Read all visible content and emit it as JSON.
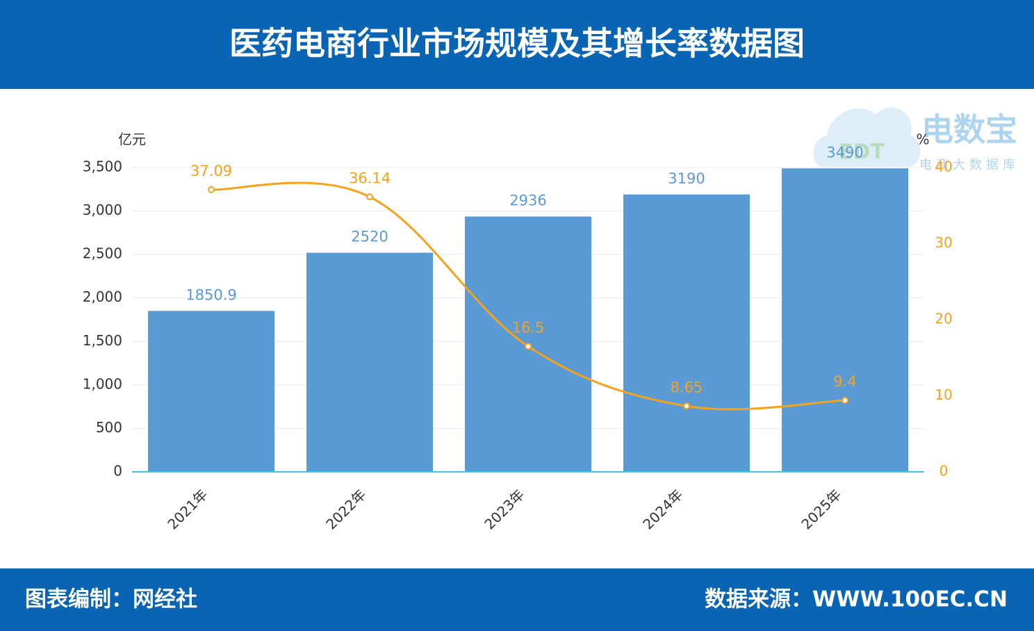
{
  "header": {
    "title": "医药电商行业市场规模及其增长率数据图"
  },
  "chart_data": {
    "type": "bar",
    "y_label": "亿元",
    "y2_label": "%",
    "categories": [
      "2021年",
      "2022年",
      "2023年",
      "2024年",
      "2025年"
    ],
    "series": [
      {
        "type": "bar",
        "color": "#5b9bd5",
        "values": [
          1850.9,
          2520,
          2936,
          3190,
          3490
        ]
      },
      {
        "type": "line",
        "axis": "y2",
        "color": "#f7a21b",
        "values": [
          37.09,
          36.14,
          16.5,
          8.65,
          9.4
        ]
      }
    ],
    "ylim": [
      0,
      3500
    ],
    "yticks": [
      0,
      500,
      {
        "value": 1000,
        "label": "1,000"
      },
      {
        "value": 1500,
        "label": "1,500"
      },
      {
        "value": 2000,
        "label": "2,000"
      },
      {
        "value": 2500,
        "label": "2,500"
      },
      {
        "value": 3000,
        "label": "3,000"
      },
      {
        "value": 3500,
        "label": "3,500"
      }
    ],
    "y2lim": [
      0,
      40
    ],
    "y2ticks": [
      0,
      10,
      20,
      30,
      40
    ],
    "grid": true
  },
  "watermark": {
    "brand": "电数宝",
    "sub": "电商大数据库",
    "logo": "EDT"
  },
  "footer": {
    "left": "图表编制：网经社",
    "right": "数据来源：WWW.100EC.CN"
  }
}
